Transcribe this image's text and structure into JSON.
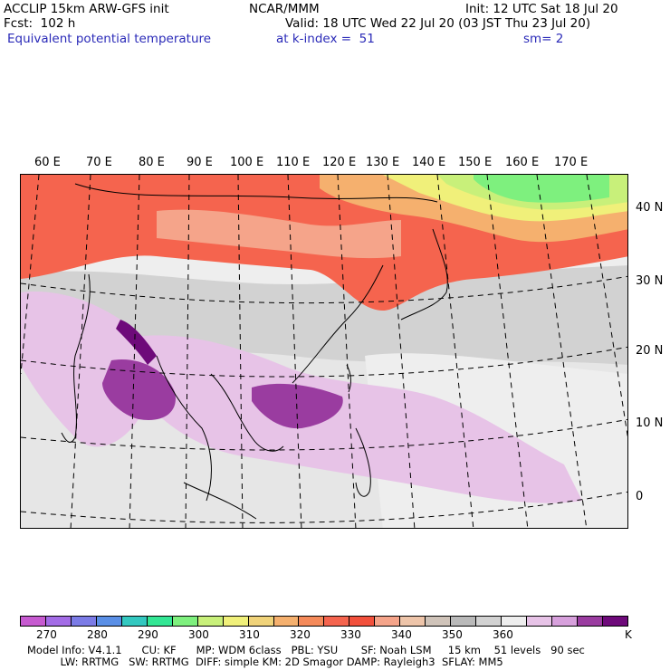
{
  "header": {
    "model": "ACCLIP 15km ARW-GFS init",
    "org": "NCAR/MMM",
    "init": "Init: 12 UTC Sat 18 Jul 20",
    "fcst": "Fcst:  102 h",
    "valid": "Valid: 18 UTC Wed 22 Jul 20 (03 JST Thu 23 Jul 20)",
    "field": "Equivalent potential temperature",
    "level": "at k-index =  51",
    "smooth": "sm= 2"
  },
  "lon_labels": [
    "60 E",
    "70 E",
    "80 E",
    "90 E",
    "100 E",
    "110 E",
    "120 E",
    "130 E",
    "140 E",
    "150 E",
    "160 E",
    "170 E"
  ],
  "lat_labels": [
    "40 N",
    "30 N",
    "20 N",
    "10 N",
    "0"
  ],
  "colorbar": {
    "colors": [
      "#c65ad0",
      "#a36ce6",
      "#7b7be6",
      "#5a8fe6",
      "#33c8c0",
      "#33e694",
      "#7ef07e",
      "#c8f07a",
      "#f0f07a",
      "#f0d37a",
      "#f5b06e",
      "#f58a5a",
      "#f5644e",
      "#f2503c",
      "#f5a48a",
      "#eec5aa",
      "#cfc3b9",
      "#b9b9b9",
      "#d2d2d2",
      "#eeeeee",
      "#e7c3e7",
      "#d7a0dc",
      "#9a3ca0",
      "#6e0a7a"
    ],
    "tick_labels": [
      "270",
      "280",
      "290",
      "300",
      "310",
      "320",
      "330",
      "340",
      "350",
      "360"
    ],
    "unit": "K"
  },
  "footer": {
    "line1": "Model Info: V4.1.1      CU: KF      MP: WDM 6class   PBL: YSU       SF: Noah LSM     15 km    51 levels   90 sec",
    "line2": "          LW: RRTMG   SW: RRTMG  DIFF: simple KM: 2D Smagor DAMP: Rayleigh3  SFLAY: MM5"
  }
}
